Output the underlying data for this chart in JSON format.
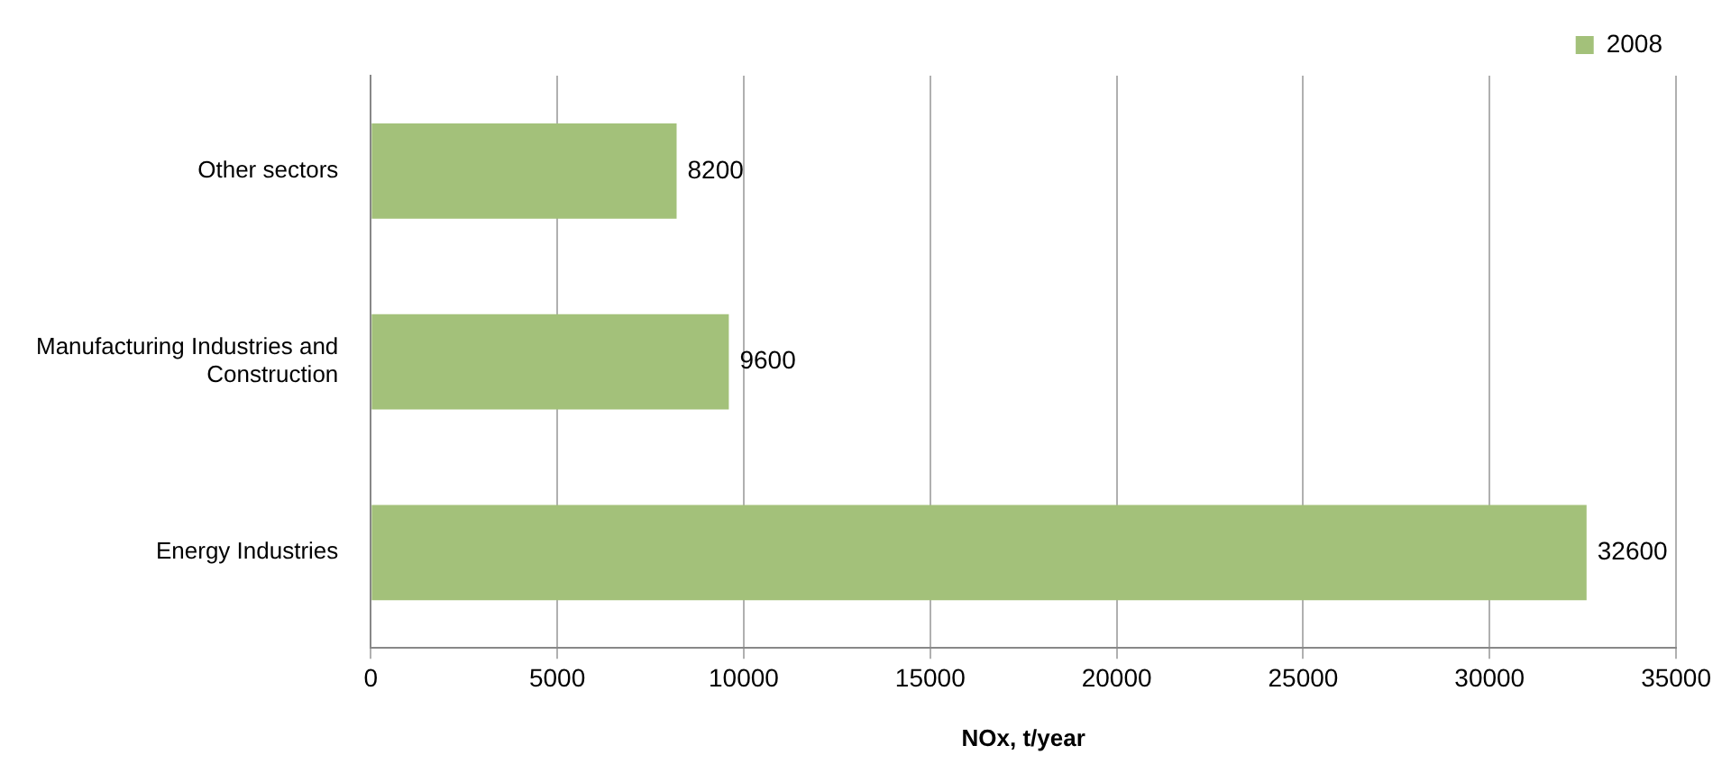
{
  "chart_data": {
    "type": "bar",
    "orientation": "horizontal",
    "xlabel": "NOx, t/year",
    "categories": [
      "Other sectors",
      "Manufacturing Industries and Construction",
      "Energy Industries"
    ],
    "series": [
      {
        "name": "2008",
        "color": "#a3c17a",
        "values": [
          8200,
          9600,
          32600
        ]
      }
    ],
    "xlim": [
      0,
      35000
    ],
    "xticks": [
      0,
      5000,
      10000,
      15000,
      20000,
      25000,
      30000,
      35000
    ],
    "grid": "x",
    "legend": "top right",
    "data_labels": true
  }
}
